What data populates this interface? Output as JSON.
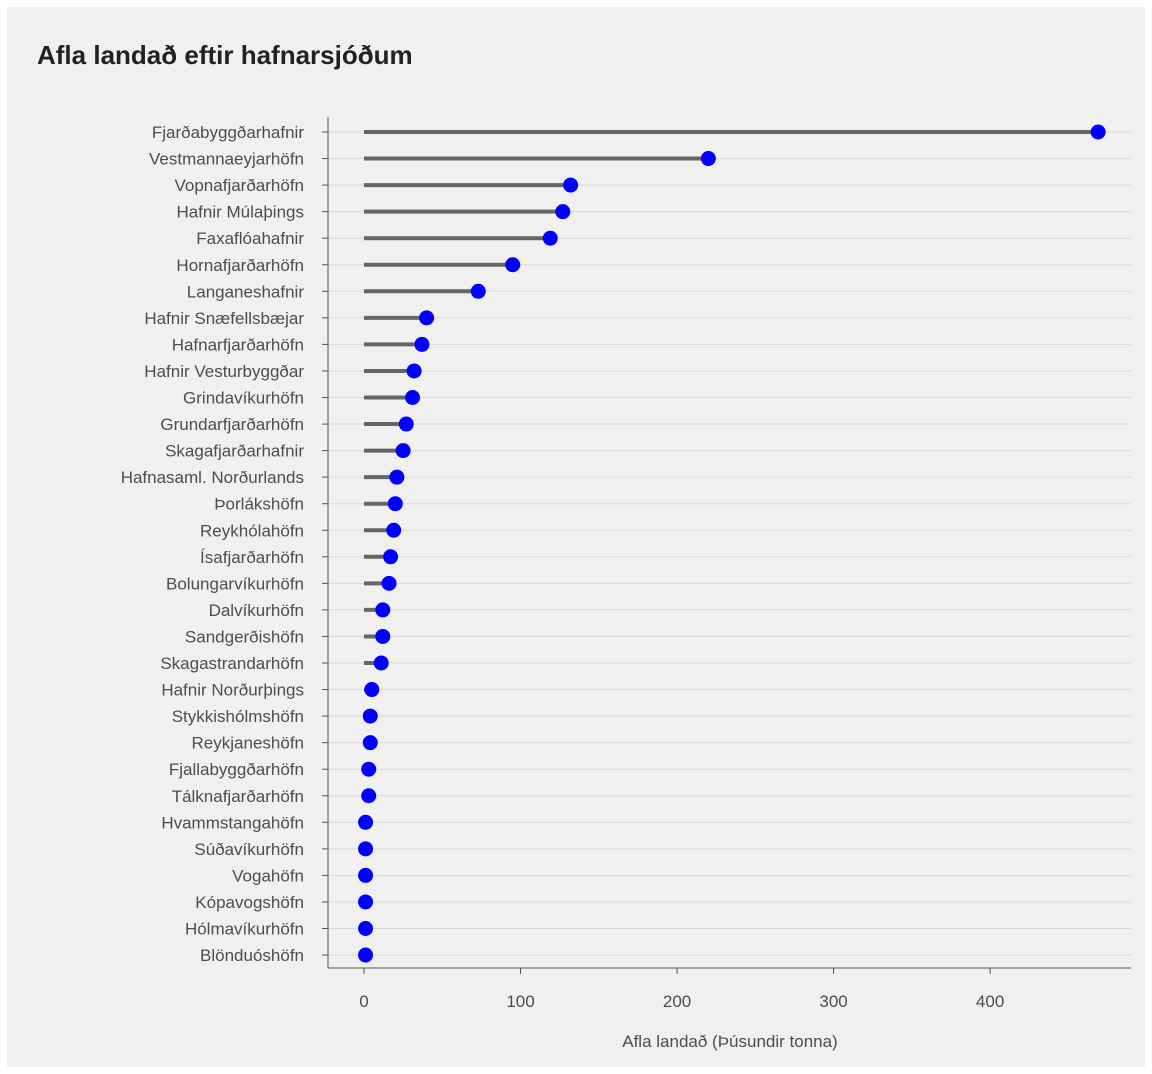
{
  "chart_data": {
    "type": "lollipop",
    "title": "Afla landað eftir hafnarsjóðum",
    "xlabel": "Afla landað (Þúsundir tonna)",
    "ylabel": "",
    "xlim": [
      -23,
      490
    ],
    "x_ticks": [
      0,
      100,
      200,
      300,
      400
    ],
    "grid": "horizontal",
    "categories": [
      "Fjarðabyggðarhafnir",
      "Vestmannaeyjarhöfn",
      "Vopnafjarðarhöfn",
      "Hafnir Múlaþings",
      "Faxaflóahafnir",
      "Hornafjarðarhöfn",
      "Langaneshafnir",
      "Hafnir Snæfellsbæjar",
      "Hafnarfjarðarhöfn",
      "Hafnir Vesturbyggðar",
      "Grindavíkurhöfn",
      "Grundarfjarðarhöfn",
      "Skagafjarðarhafnir",
      "Hafnasaml. Norðurlands",
      "Þorlákshöfn",
      "Reykhólahöfn",
      "Ísafjarðarhöfn",
      "Bolungarvíkurhöfn",
      "Dalvíkurhöfn",
      "Sandgerðishöfn",
      "Skagastrandarhöfn",
      "Hafnir Norðurþings",
      "Stykkishólmshöfn",
      "Reykjaneshöfn",
      "Fjallabyggðarhöfn",
      "Tálknafjarðarhöfn",
      "Hvammstangahöfn",
      "Súðavíkurhöfn",
      "Vogahöfn",
      "Kópavogshöfn",
      "Hólmavíkurhöfn",
      "Blönduóshöfn"
    ],
    "values": [
      469,
      220,
      132,
      127,
      119,
      95,
      73,
      40,
      37,
      32,
      31,
      27,
      25,
      21,
      20,
      19,
      17,
      16,
      12,
      12,
      11,
      5,
      4,
      4,
      3,
      3,
      1,
      1,
      1,
      1,
      1,
      1
    ],
    "colors": {
      "stem": "#666666",
      "point": "#0000ff",
      "grid": "#d9d9d9",
      "axis": "#555555",
      "panel": "#f0f0f0"
    }
  }
}
